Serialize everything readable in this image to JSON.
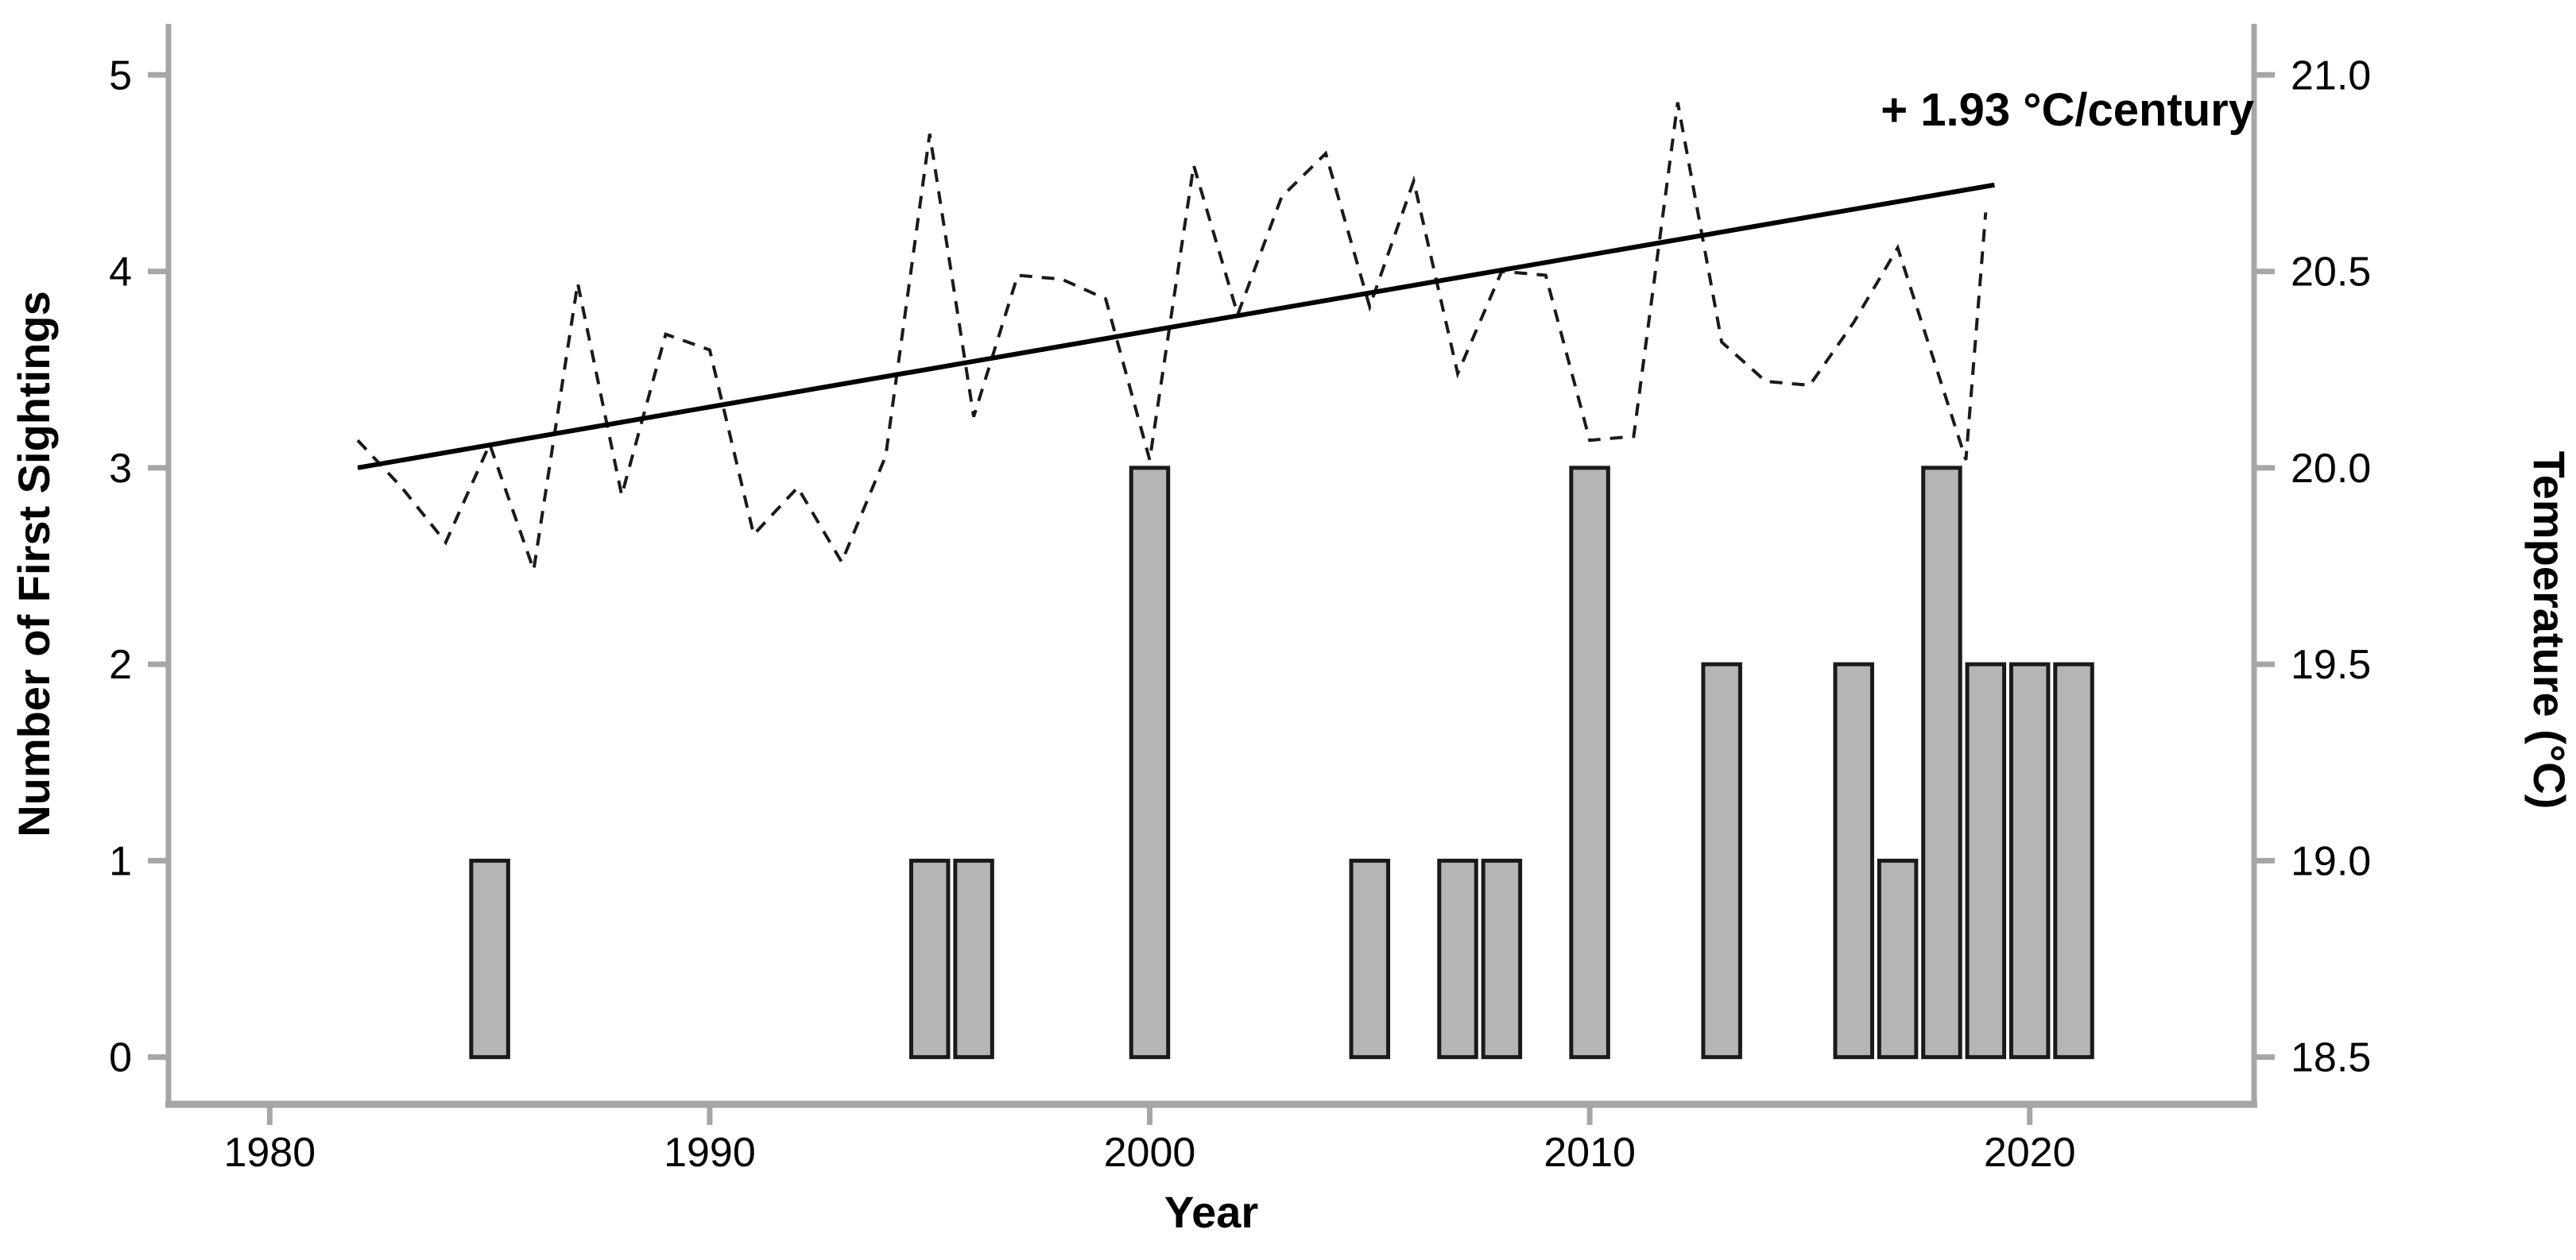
{
  "colors": {
    "background": "#ffffff",
    "axis_spine": "#a6a6a6",
    "tick_mark": "#a6a6a6",
    "bar_fill": "#b5b5b5",
    "bar_stroke": "#1a1a1a",
    "temp_line": "#1a1a1a",
    "trend_line": "#000000",
    "text": "#000000"
  },
  "annotation": "+ 1.93 °C/century",
  "chart_data": {
    "type": "bar",
    "subtype": "bar + dashed line + linear trend (dual axis)",
    "title": "",
    "xlabel": "Year",
    "ylabel": "Number of First Sightings",
    "ylabel_right": "Temperature (°C)",
    "grid": false,
    "legend": "none",
    "x_ticks": [
      1980,
      1990,
      2000,
      2010,
      2020
    ],
    "y_ticks_left": [
      0,
      1,
      2,
      3,
      4,
      5
    ],
    "y_ticks_right": [
      "18.5",
      "19.0",
      "19.5",
      "20.0",
      "20.5",
      "21.0"
    ],
    "y_ticks_right_values": [
      18.5,
      19.0,
      19.5,
      20.0,
      20.5,
      21.0
    ],
    "xlim": [
      1977.7,
      2025.1
    ],
    "ylim_left": [
      -0.24,
      5.26
    ],
    "ylim_right": [
      18.38,
      21.13
    ],
    "bars": {
      "name": "Number of First Sightings",
      "axis": "left",
      "bar_width_years": 0.84,
      "categories": [
        1985,
        1995,
        1996,
        2000,
        2005,
        2007,
        2008,
        2010,
        2013,
        2016,
        2017,
        2018,
        2019,
        2020,
        2021
      ],
      "values": [
        1,
        1,
        1,
        3,
        1,
        1,
        1,
        3,
        2,
        2,
        1,
        3,
        2,
        2,
        2
      ]
    },
    "series": [
      {
        "name": "Temperature",
        "axis": "right",
        "style": "dashed",
        "x": [
          1982,
          1983,
          1984,
          1985,
          1986,
          1987,
          1988,
          1989,
          1990,
          1991,
          1992,
          1993,
          1994,
          1995,
          1996,
          1997,
          1998,
          1999,
          2000,
          2001,
          2002,
          2003,
          2004,
          2005,
          2006,
          2007,
          2008,
          2009,
          2010,
          2011,
          2012,
          2013,
          2014,
          2015,
          2016,
          2017,
          2018.55,
          2019
        ],
        "values": [
          20.07,
          19.95,
          19.81,
          20.06,
          19.74,
          20.47,
          19.93,
          20.34,
          20.3,
          19.83,
          19.95,
          19.76,
          20.03,
          20.85,
          20.13,
          20.49,
          20.48,
          20.43,
          20.02,
          20.77,
          20.39,
          20.69,
          20.8,
          20.41,
          20.73,
          20.24,
          20.5,
          20.49,
          20.07,
          20.08,
          20.93,
          20.32,
          20.22,
          20.21,
          20.37,
          20.56,
          20.02,
          20.65
        ]
      },
      {
        "name": "Temperature trend",
        "axis": "right",
        "style": "solid",
        "slope_c_per_century": 1.93,
        "label": "+ 1.93 °C/century",
        "x": [
          1982,
          2019.2
        ],
        "values": [
          20.0,
          20.72
        ]
      }
    ]
  }
}
